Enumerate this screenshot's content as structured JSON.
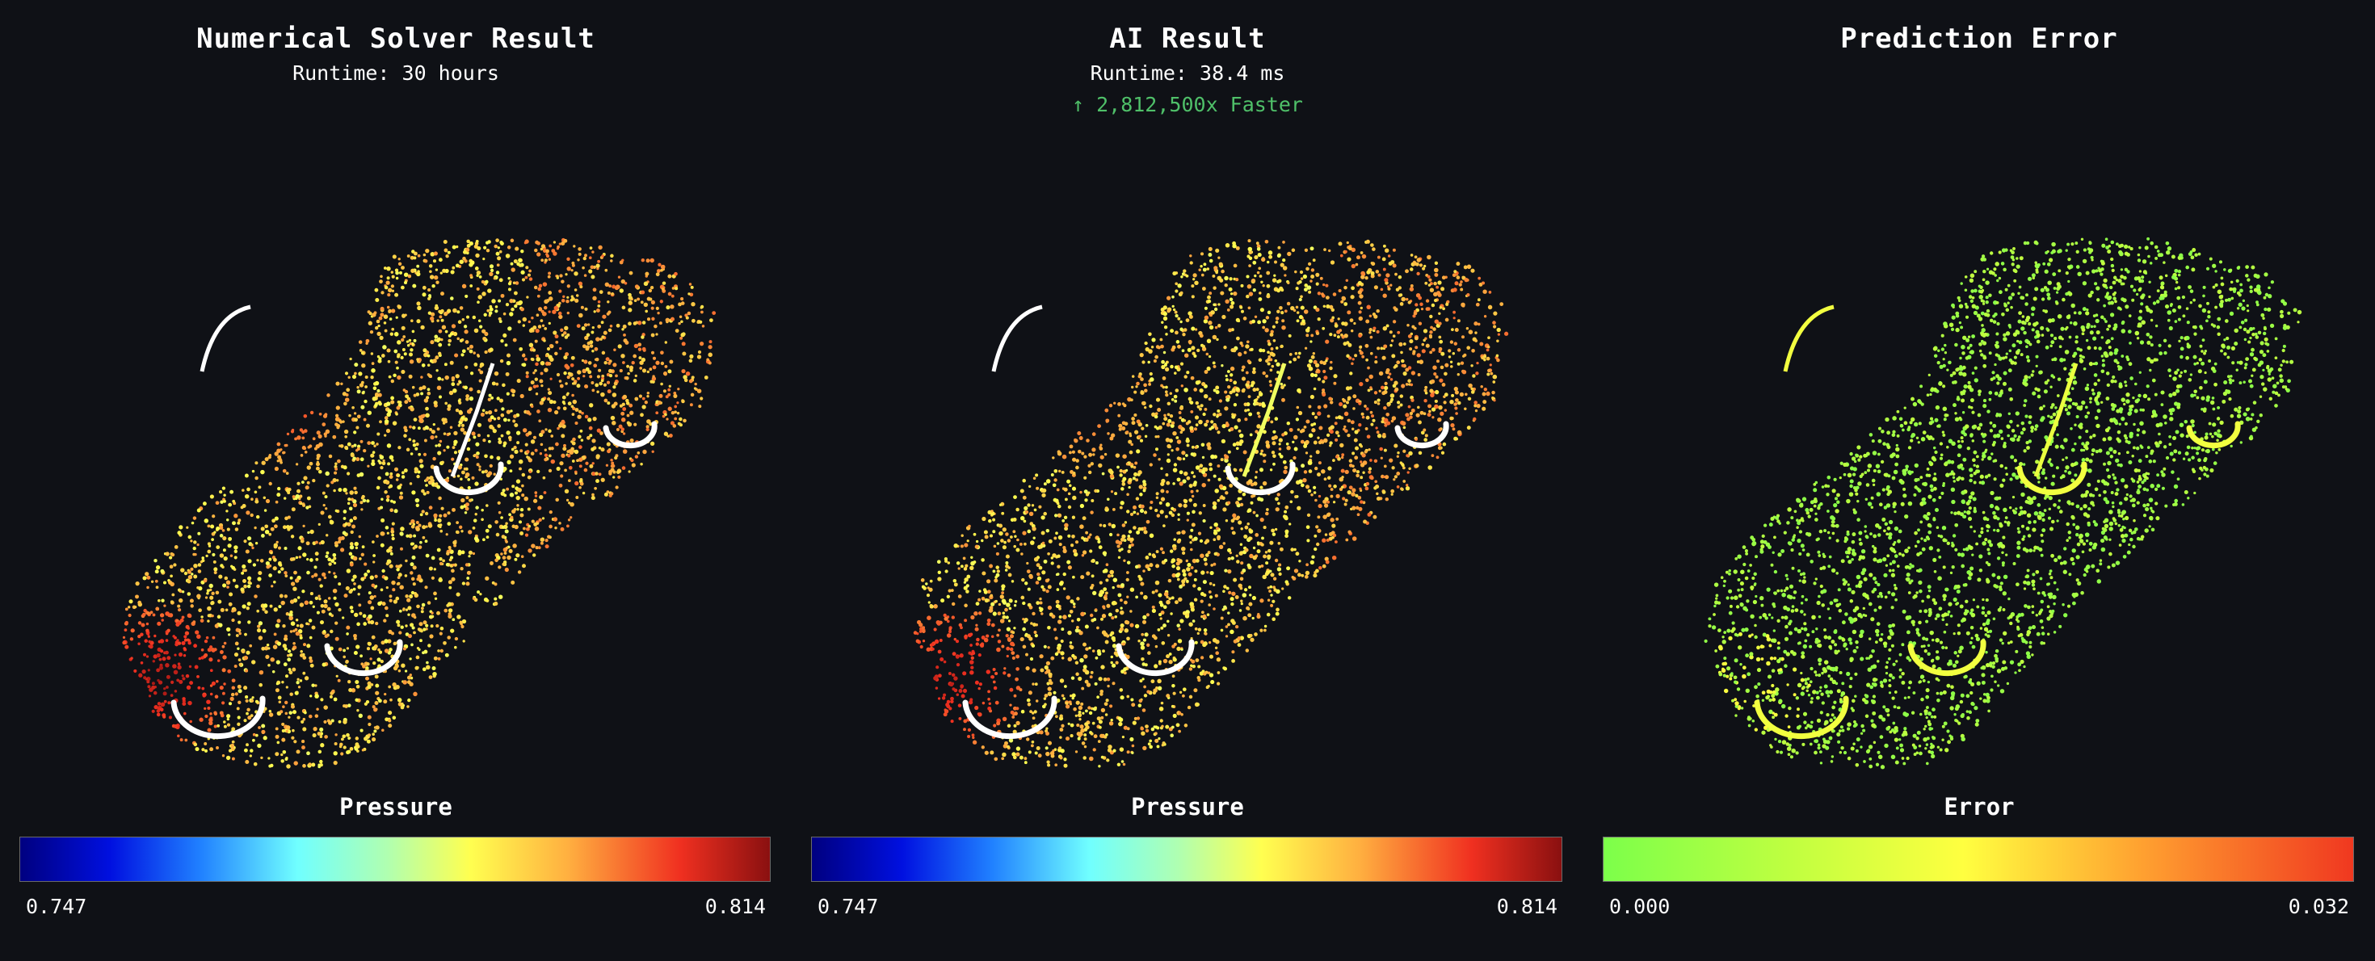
{
  "panels": [
    {
      "title": "Numerical Solver Result",
      "subtitle": "Runtime: 30 hours",
      "speedup": "",
      "colorbar": {
        "label": "Pressure",
        "min": "0.747",
        "max": "0.814",
        "scheme": "pressure"
      },
      "hot_spot_strength": 1.0
    },
    {
      "title": "AI Result",
      "subtitle": "Runtime: 38.4 ms",
      "speedup": "↑ 2,812,500x Faster",
      "colorbar": {
        "label": "Pressure",
        "min": "0.747",
        "max": "0.814",
        "scheme": "pressure"
      },
      "hot_spot_strength": 0.75
    },
    {
      "title": "Prediction Error",
      "subtitle": "",
      "speedup": "",
      "colorbar": {
        "label": "Error",
        "min": "0.000",
        "max": "0.032",
        "scheme": "error"
      },
      "hot_spot_strength": 0.0
    }
  ],
  "colors": {
    "background": "#0f1116",
    "speedup_green": "#4fc069",
    "pressure_stops": [
      "#000080",
      "#0010e0",
      "#2080ff",
      "#70ffff",
      "#b0ffb0",
      "#ffff50",
      "#ffb040",
      "#f03020",
      "#8a1010"
    ],
    "error_stops": [
      "#7cff4a",
      "#c0ff40",
      "#ffff40",
      "#ffa030",
      "#f03820"
    ]
  }
}
